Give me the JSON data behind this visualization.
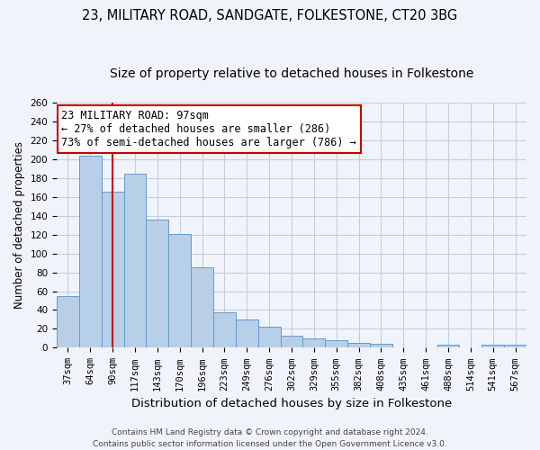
{
  "title": "23, MILITARY ROAD, SANDGATE, FOLKESTONE, CT20 3BG",
  "subtitle": "Size of property relative to detached houses in Folkestone",
  "xlabel": "Distribution of detached houses by size in Folkestone",
  "ylabel": "Number of detached properties",
  "categories": [
    "37sqm",
    "64sqm",
    "90sqm",
    "117sqm",
    "143sqm",
    "170sqm",
    "196sqm",
    "223sqm",
    "249sqm",
    "276sqm",
    "302sqm",
    "329sqm",
    "355sqm",
    "382sqm",
    "408sqm",
    "435sqm",
    "461sqm",
    "488sqm",
    "514sqm",
    "541sqm",
    "567sqm"
  ],
  "values": [
    55,
    204,
    165,
    184,
    136,
    121,
    85,
    38,
    30,
    22,
    13,
    10,
    8,
    5,
    4,
    0,
    0,
    3,
    0,
    3,
    3
  ],
  "bar_color": "#b8cfe8",
  "bar_edge_color": "#6699cc",
  "property_line_color": "#cc0000",
  "property_line_x": 2,
  "annotation_line1": "23 MILITARY ROAD: 97sqm",
  "annotation_line2": "← 27% of detached houses are smaller (286)",
  "annotation_line3": "73% of semi-detached houses are larger (786) →",
  "annotation_box_color": "#ffffff",
  "annotation_box_edge_color": "#cc0000",
  "ylim": [
    0,
    260
  ],
  "yticks": [
    0,
    20,
    40,
    60,
    80,
    100,
    120,
    140,
    160,
    180,
    200,
    220,
    240,
    260
  ],
  "background_color": "#f0f4fa",
  "grid_color": "#c0cfe0",
  "footer_line1": "Contains HM Land Registry data © Crown copyright and database right 2024.",
  "footer_line2": "Contains public sector information licensed under the Open Government Licence v3.0.",
  "title_fontsize": 10.5,
  "subtitle_fontsize": 10,
  "xlabel_fontsize": 9.5,
  "ylabel_fontsize": 8.5,
  "tick_fontsize": 7.5,
  "annotation_fontsize": 8.5,
  "footer_fontsize": 6.5
}
